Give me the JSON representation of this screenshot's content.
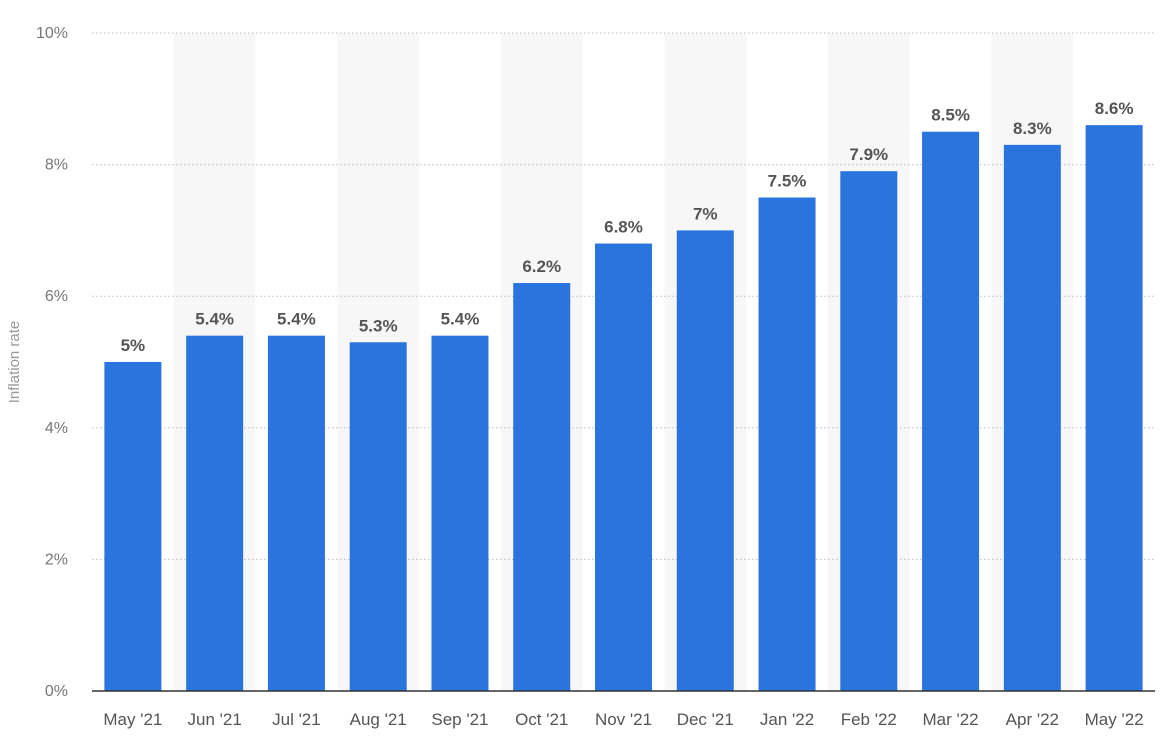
{
  "chart_data": {
    "type": "bar",
    "categories": [
      "May '21",
      "Jun '21",
      "Jul '21",
      "Aug '21",
      "Sep '21",
      "Oct '21",
      "Nov '21",
      "Dec '21",
      "Jan '22",
      "Feb '22",
      "Mar '22",
      "Apr '22",
      "May '22"
    ],
    "values": [
      5,
      5.4,
      5.4,
      5.3,
      5.4,
      6.2,
      6.8,
      7,
      7.5,
      7.9,
      8.5,
      8.3,
      8.6
    ],
    "data_labels": [
      "5%",
      "5.4%",
      "5.4%",
      "5.3%",
      "5.4%",
      "6.2%",
      "6.8%",
      "7%",
      "7.5%",
      "7.9%",
      "8.5%",
      "8.3%",
      "8.6%"
    ],
    "title": "",
    "xlabel": "",
    "ylabel": "Inflation rate",
    "ylim": [
      0,
      10
    ],
    "yticks": [
      0,
      2,
      4,
      6,
      8,
      10
    ],
    "ytick_labels": [
      "0%",
      "2%",
      "4%",
      "6%",
      "8%",
      "10%"
    ],
    "grid": true,
    "bar_color": "#2a74dd",
    "band_color": "#f7f7f7"
  }
}
